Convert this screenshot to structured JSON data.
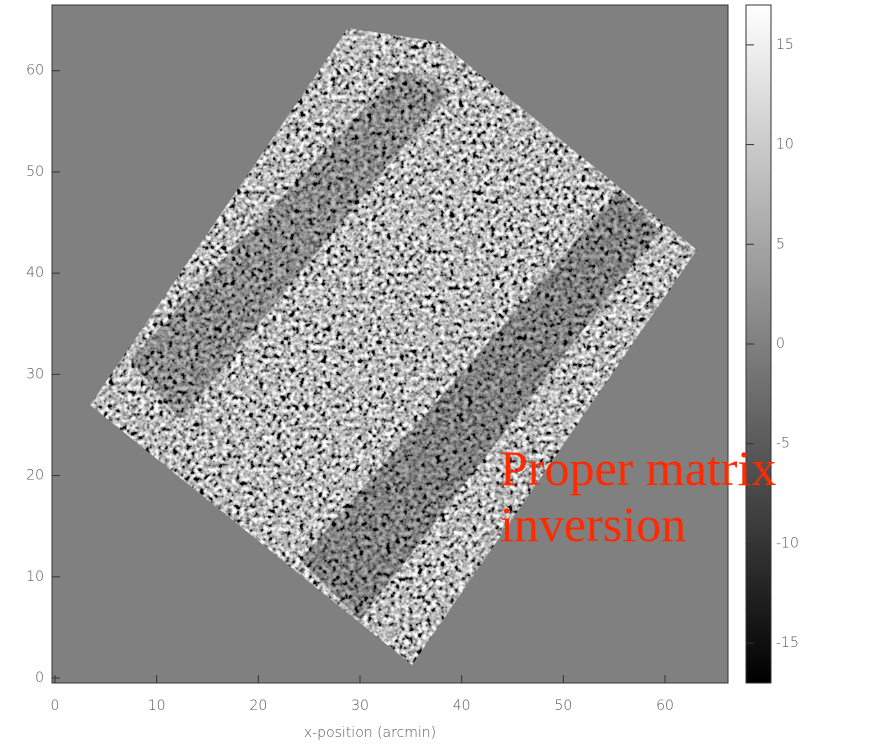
{
  "chart_data": {
    "type": "image",
    "xlabel": "x-position (arcmin)",
    "xlim": [
      0,
      66
    ],
    "xticks": [
      0,
      10,
      20,
      30,
      40,
      50,
      60
    ],
    "ylim": [
      0,
      66
    ],
    "yticks": [
      0,
      10,
      20,
      30,
      40,
      50,
      60
    ],
    "clim": [
      -17,
      17
    ],
    "cticks": [
      -15,
      -10,
      -5,
      0,
      5,
      10,
      15
    ],
    "annotation": "Proper matrix inversion"
  }
}
